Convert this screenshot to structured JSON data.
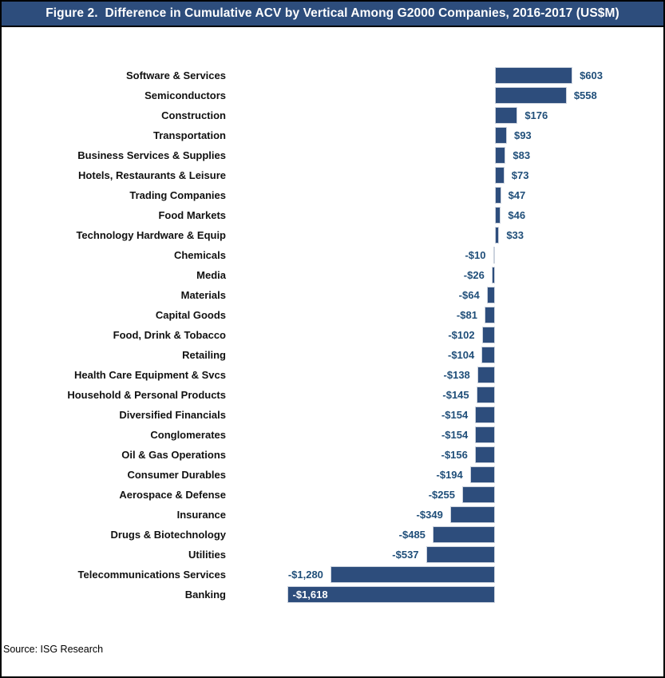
{
  "header": {
    "title": "Figure 2.  Difference in Cumulative ACV by Vertical Among G2000 Companies, 2016-2017 (US$M)"
  },
  "footer": {
    "source": "Source: ISG Research"
  },
  "colors": {
    "header_bg": "#2d4d7c",
    "header_text": "#ffffff",
    "figure_border": "#000000",
    "bar": "#2d4d7c",
    "bar_border": "#ccd3de",
    "category_label": "#111111",
    "value_label": "#1f4e79",
    "inside_label": "#ffffff"
  },
  "chart_data": {
    "type": "bar",
    "orientation": "horizontal",
    "title": "Figure 2.  Difference in Cumulative ACV by Vertical Among G2000 Companies, 2016-2017 (US$M)",
    "xlabel": "",
    "ylabel": "",
    "unit": "US$M",
    "xlim": [
      -1700,
      700
    ],
    "grid": false,
    "legend": false,
    "categories": [
      "Software & Services",
      "Semiconductors",
      "Construction",
      "Transportation",
      "Business Services & Supplies",
      "Hotels, Restaurants & Leisure",
      "Trading Companies",
      "Food Markets",
      "Technology Hardware & Equip",
      "Chemicals",
      "Media",
      "Materials",
      "Capital Goods",
      "Food, Drink & Tobacco",
      "Retailing",
      "Health Care Equipment & Svcs",
      "Household & Personal Products",
      "Diversified Financials",
      "Conglomerates",
      "Oil & Gas Operations",
      "Consumer Durables",
      "Aerospace & Defense",
      "Insurance",
      "Drugs & Biotechnology",
      "Utilities",
      "Telecommunications Services",
      "Banking"
    ],
    "values": [
      603,
      558,
      176,
      93,
      83,
      73,
      47,
      46,
      33,
      -10,
      -26,
      -64,
      -81,
      -102,
      -104,
      -138,
      -145,
      -154,
      -154,
      -156,
      -194,
      -255,
      -349,
      -485,
      -537,
      -1280,
      -1618
    ],
    "value_labels": [
      "$603",
      "$558",
      "$176",
      "$93",
      "$83",
      "$73",
      "$47",
      "$46",
      "$33",
      "-$10",
      "-$26",
      "-$64",
      "-$81",
      "-$102",
      "-$104",
      "-$138",
      "-$145",
      "-$154",
      "-$154",
      "-$156",
      "-$194",
      "-$255",
      "-$349",
      "-$485",
      "-$537",
      "-$1,280",
      "-$1,618"
    ],
    "value_labels_inside_bar": [
      "Banking"
    ]
  }
}
